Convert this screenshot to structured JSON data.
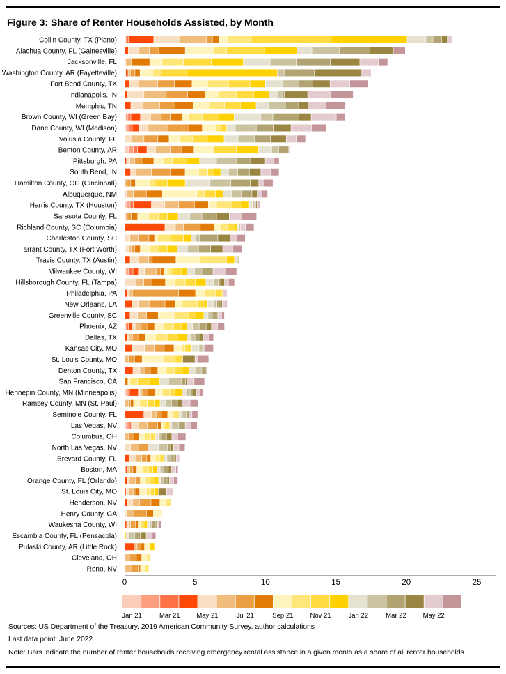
{
  "title": "Figure 3: Share of Renter Households Assisted, by Month",
  "notes": {
    "sources": "Sources: US Department of the Treasury, 2019 American Community Survey, author calculations",
    "last_data": "Last data point: June 2022",
    "note": "Note: Bars indicate the number of renter households receiving emergency rental assistance in a given month as a share of all renter households."
  },
  "chart_data": {
    "type": "bar",
    "orientation": "horizontal",
    "stacked": true,
    "xlim": [
      0,
      25
    ],
    "xticks": [
      0,
      5,
      10,
      15,
      20,
      25
    ],
    "grid": false,
    "legend_position": "bottom",
    "months": [
      "Jan 21",
      "Feb 21",
      "Mar 21",
      "Apr 21",
      "May 21",
      "Jun 21",
      "Jul 21",
      "Aug 21",
      "Sep 21",
      "Oct 21",
      "Nov 21",
      "Dec 21",
      "Jan 22",
      "Feb 22",
      "Mar 22",
      "Apr 22",
      "May 22",
      "Jun 22"
    ],
    "legend_labels": [
      "Jan 21",
      "",
      "Mar 21",
      "",
      "May 21",
      "",
      "Jul 21",
      "",
      "Sep 21",
      "",
      "Nov 21",
      "",
      "Jan 22",
      "",
      "Mar 22",
      "",
      "May 22",
      ""
    ],
    "colors": [
      "#fdcdbb",
      "#fc9f7f",
      "#fd7346",
      "#fe4a06",
      "#f9dfc1",
      "#f1bd7c",
      "#eb9f42",
      "#e27b06",
      "#fff4bb",
      "#ffe679",
      "#ffdb3f",
      "#ffd100",
      "#e6e2d2",
      "#cbc2a0",
      "#b1a472",
      "#9a8642",
      "#e4cbcf",
      "#c49599"
    ],
    "categories": [
      "Collin County, TX (Plano)",
      "Alachua County, FL (Gainesville)",
      "Jacksonville, FL",
      "Washington County, AR (Fayetteville)",
      "Fort Bend County, TX",
      "Indianapolis, IN",
      "Memphis, TN",
      "Brown County, WI (Green Bay)",
      "Dane County, WI (Madison)",
      "Volusia County, FL",
      "Benton County, AR",
      "Pittsburgh, PA",
      "South Bend, IN",
      "Hamilton County, OH (Cincinnati)",
      "Albuquerque, NM",
      "Harris County, TX (Houston)",
      "Sarasota County, FL",
      "Richland County, SC (Columbia)",
      "Charleston County, SC",
      "Tarrant County, TX (Fort Worth)",
      "Travis County, TX (Austin)",
      "Milwaukee County, WI",
      "Hillsborough County, FL (Tampa)",
      "Philadelphia, PA",
      "New Orleans, LA",
      "Greenville County, SC",
      "Phoenix, AZ",
      "Dallas, TX",
      "Kansas City, MO",
      "St. Louis County, MO",
      "Denton County, TX",
      "San Francisco, CA",
      "Hennepin County, MN (Minneapolis)",
      "Ramsey County, MN (St. Paul)",
      "Seminole County, FL",
      "Las Vegas, NV",
      "Columbus, OH",
      "North Las Vegas, NV",
      "Brevard County, FL",
      "Boston, MA",
      "Orange County, FL (Orlando)",
      "St. Louis City, MO",
      "Henderson, NV",
      "Henry County, GA",
      "Waukesha County, WI",
      "Escambia County, FL (Pensacola)",
      "Pulaski County, AR (Little Rock)",
      "Cleveland, OH",
      "Reno, NV"
    ],
    "values": [
      [
        0.1,
        0.08,
        0.1,
        1.8,
        1.86,
        1.88,
        0.43,
        0.49,
        0.56,
        1.71,
        5.67,
        5.39,
        1.33,
        0.56,
        0.56,
        0.4,
        0.36,
        0
      ],
      [
        0,
        0,
        0,
        0.28,
        0.7,
        0.8,
        0.66,
        1.88,
        2.04,
        0.9,
        2.69,
        2.31,
        1.05,
        1.94,
        2.19,
        1.68,
        0,
        0.82
      ],
      [
        0.1,
        0,
        0,
        0,
        0,
        0.38,
        0,
        1.32,
        0.87,
        1.53,
        1.98,
        2.26,
        1.98,
        1.78,
        2.42,
        2.09,
        1.32,
        0.66
      ],
      [
        0.1,
        0,
        0,
        0.16,
        0,
        0.16,
        0.33,
        0.36,
        0.9,
        0.6,
        1.85,
        6.39,
        0,
        0.53,
        2.09,
        3.31,
        0.74,
        0
      ],
      [
        0,
        0,
        0,
        0.33,
        0.7,
        1.33,
        1.19,
        1.25,
        1.1,
        1.48,
        1.53,
        1.1,
        1.19,
        1.19,
        0.99,
        1.22,
        1.4,
        1.32
      ],
      [
        0,
        0,
        0,
        0.2,
        1.19,
        1.58,
        1.52,
        1.22,
        0.99,
        1.22,
        1.25,
        1.1,
        0.63,
        0.33,
        0.13,
        1.65,
        1.63,
        1.6
      ],
      [
        0,
        0,
        0,
        0.46,
        0.86,
        1.19,
        1.09,
        1.3,
        1.14,
        1.07,
        1.12,
        1.12,
        0.89,
        1.19,
        0.94,
        0.72,
        1.22,
        1.37
      ],
      [
        0.1,
        0.16,
        0.2,
        0.68,
        0.72,
        0.76,
        0.64,
        0.82,
        0.45,
        0.99,
        1.2,
        1.07,
        1.88,
        0.87,
        1.85,
        0.87,
        1.78,
        0.61
      ],
      [
        0.16,
        0.2,
        0.2,
        0.5,
        0.63,
        1.4,
        1.48,
        0.96,
        0.95,
        0.38,
        0.41,
        0,
        0.61,
        1.48,
        1.2,
        1.27,
        1.45,
        1.05
      ],
      [
        0,
        0,
        0,
        0,
        0.53,
        0.86,
        0.99,
        0.79,
        0.74,
        0.94,
        1.04,
        1.19,
        0.99,
        1.15,
        1.15,
        1.12,
        0.71,
        0.66
      ],
      [
        0.31,
        0.33,
        0.3,
        0.66,
        0.61,
        1.04,
        0.82,
        0.87,
        1.43,
        0,
        1.58,
        1.57,
        0.94,
        0.49,
        0.69,
        0.05,
        0.08,
        0
      ],
      [
        0,
        0,
        0,
        0.15,
        0.25,
        0.33,
        0.59,
        0.77,
        0.69,
        0.63,
        1.04,
        0.89,
        1.2,
        1.43,
        0.99,
        1.04,
        0.63,
        0.36
      ],
      [
        0,
        0,
        0,
        0.44,
        0.38,
        1.1,
        1.32,
        1.07,
        0.96,
        0.66,
        0.44,
        0.46,
        0.56,
        0.66,
        0.82,
        0.82,
        0.68,
        0.61
      ],
      [
        0,
        0,
        0,
        0,
        0,
        0.2,
        0.25,
        0.33,
        0.99,
        0.41,
        0.87,
        1.27,
        1.76,
        1.48,
        1.37,
        0.61,
        0.38,
        0.63
      ],
      [
        0.15,
        0,
        0,
        0,
        0,
        0.49,
        0.92,
        1.14,
        2.44,
        0.53,
        0.79,
        0.53,
        0.63,
        0.69,
        0.74,
        0.38,
        0.33,
        0.41
      ],
      [
        0.2,
        0.21,
        0.23,
        1.28,
        0.94,
        0.99,
        1.12,
        0.99,
        0.58,
        1.12,
        0.69,
        0.51,
        0.23,
        0.13,
        0.12,
        0.08,
        0.08,
        0.1
      ],
      [
        0.2,
        0,
        0,
        0,
        0,
        0,
        0.28,
        0.46,
        0.77,
        0.71,
        0.63,
        0.77,
        0.82,
        0.86,
        1.04,
        0.9,
        0.91,
        1.04
      ],
      [
        0,
        0,
        0,
        2.88,
        0.74,
        0.58,
        1.19,
        0.99,
        0.41,
        0.54,
        0.53,
        0.16,
        0.08,
        0.07,
        0.06,
        0,
        0.36,
        0.61
      ],
      [
        0,
        0,
        0,
        0,
        0.4,
        0.58,
        0.76,
        0.4,
        0.21,
        0.96,
        0.89,
        0.54,
        0.33,
        0.28,
        1.28,
        0.86,
        0.51,
        0.58
      ],
      [
        0.08,
        0,
        0,
        0,
        0.2,
        0.2,
        0.25,
        0.4,
        0.71,
        0.61,
        0.59,
        0.71,
        0.72,
        0.79,
        0.86,
        0.86,
        0.71,
        0.69
      ],
      [
        0,
        0,
        0,
        0.41,
        0.56,
        0.76,
        0.25,
        1.68,
        1.73,
        1.81,
        0.05,
        0.56,
        0.21,
        0.05,
        0.08,
        0,
        0,
        0
      ],
      [
        0.12,
        0.16,
        0.33,
        0.38,
        0.44,
        0.82,
        0.33,
        0.25,
        0.3,
        0.31,
        0.63,
        0.36,
        0.54,
        0.61,
        0.71,
        0,
        0.91,
        0.77
      ],
      [
        0,
        0,
        0,
        0,
        0.82,
        0.56,
        0.59,
        0.94,
        0.63,
        0.77,
        0.71,
        0.77,
        0.54,
        0.33,
        0.2,
        0.25,
        0.28,
        0.43
      ],
      [
        0,
        0,
        0,
        0.2,
        0.16,
        0.21,
        3.28,
        1.2,
        0.66,
        0.74,
        0.44,
        0.08,
        0,
        0,
        0.05,
        0,
        0.2,
        0.05
      ],
      [
        0,
        0,
        0,
        0.53,
        0.46,
        0.77,
        1.12,
        0.74,
        0.49,
        1.07,
        0.53,
        0.2,
        0.41,
        0.25,
        0.3,
        0.08,
        0.25,
        0.08
      ],
      [
        0,
        0,
        0,
        0.4,
        0.54,
        0.64,
        0,
        0.82,
        1.12,
        1.05,
        0.51,
        0.56,
        0.3,
        0.3,
        0.36,
        0.05,
        0.25,
        0.2
      ],
      [
        0.12,
        0,
        0.16,
        0.25,
        0.3,
        0.36,
        0.46,
        0.49,
        0.61,
        0.74,
        0.58,
        0.38,
        0.4,
        0.46,
        0.49,
        0.38,
        0.44,
        0.49
      ],
      [
        0,
        0,
        0,
        0.2,
        0.16,
        0.21,
        0.44,
        0.49,
        0.71,
        0.82,
        0.74,
        0.66,
        0.25,
        0.33,
        0.36,
        0.25,
        0.38,
        0.33
      ],
      [
        0,
        0,
        0,
        0.56,
        0.87,
        0.69,
        0.71,
        0.69,
        0.54,
        0.25,
        0.46,
        0,
        0.53,
        0.25,
        0.08,
        0,
        0.08,
        0.61
      ],
      [
        0,
        0,
        0,
        0,
        0,
        0.28,
        0.44,
        0.54,
        1.48,
        0.87,
        0.53,
        0,
        0,
        0,
        0,
        0.87,
        0.16,
        0.82
      ],
      [
        0,
        0,
        0,
        0.61,
        0.49,
        0.36,
        0.38,
        0.53,
        0.54,
        0.66,
        0.54,
        0.49,
        0.49,
        0.4,
        0.26,
        0.08,
        0.08,
        0
      ],
      [
        0,
        0,
        0,
        0,
        0,
        0,
        0,
        0.25,
        0.16,
        0.53,
        0.86,
        0.71,
        0.63,
        0.89,
        0.3,
        0.16,
        0.46,
        0.74
      ],
      [
        0.2,
        0.16,
        0,
        0.63,
        0.2,
        0.13,
        0.36,
        0.53,
        0.49,
        0.54,
        0.33,
        0.54,
        0.33,
        0.23,
        0.21,
        0.25,
        0.25,
        0.21
      ],
      [
        0,
        0,
        0,
        0,
        0,
        0.28,
        0.16,
        0.21,
        0.44,
        0.54,
        0.49,
        0.41,
        0.4,
        0.41,
        0.43,
        0.31,
        0.58,
        0.59
      ],
      [
        0,
        0,
        0,
        1.38,
        0.54,
        0.33,
        0.38,
        0.44,
        0.36,
        0.3,
        0.13,
        0,
        0.25,
        0.28,
        0.2,
        0,
        0.21,
        0.41
      ],
      [
        0.2,
        0.16,
        0.13,
        0.08,
        0.4,
        0.66,
        0.74,
        0.28,
        0.16,
        0.16,
        0.16,
        0.08,
        0.16,
        0.49,
        0.46,
        0,
        0.41,
        0.44
      ],
      [
        0,
        0,
        0,
        0,
        0,
        0.31,
        0.38,
        0.38,
        0.41,
        0.4,
        0.21,
        0.12,
        0.21,
        0.21,
        0.36,
        0.38,
        0.41,
        0.58
      ],
      [
        0,
        0,
        0,
        0,
        0.44,
        0.58,
        0.66,
        0,
        0,
        0,
        0,
        0,
        0.74,
        0.63,
        0.23,
        0.21,
        0.38,
        0.43
      ],
      [
        0,
        0,
        0,
        0.36,
        0.46,
        0.41,
        0.36,
        0.28,
        0.33,
        0.33,
        0.26,
        0,
        0.23,
        0.3,
        0.21,
        0.15,
        0.21,
        0.08
      ],
      [
        0.08,
        0,
        0,
        0.16,
        0,
        0.15,
        0.21,
        0.28,
        0.38,
        0.46,
        0.31,
        0.3,
        0.21,
        0.25,
        0.33,
        0.23,
        0.3,
        0.16
      ],
      [
        0,
        0,
        0,
        0.2,
        0.16,
        0.41,
        0.36,
        0,
        0.38,
        0.33,
        0.33,
        0.25,
        0.16,
        0.2,
        0.25,
        0.16,
        0.3,
        0.3
      ],
      [
        0,
        0,
        0,
        0.12,
        0.2,
        0.3,
        0.21,
        0.25,
        0.48,
        0.3,
        0.25,
        0.3,
        0,
        0,
        0,
        0.58,
        0.46,
        0
      ],
      [
        0,
        0,
        0,
        0.2,
        0.38,
        0.49,
        0.82,
        0.63,
        0.38,
        0.41,
        0,
        0,
        0,
        0,
        0,
        0,
        0,
        0
      ],
      [
        0,
        0,
        0,
        0,
        0.15,
        0.53,
        0.89,
        0.49,
        0.63,
        0,
        0,
        0,
        0,
        0,
        0,
        0,
        0,
        0
      ],
      [
        0,
        0,
        0,
        0.16,
        0.12,
        0.16,
        0.33,
        0.21,
        0.2,
        0.16,
        0.13,
        0.15,
        0.16,
        0.13,
        0.33,
        0.12,
        0.05,
        0.2
      ],
      [
        0,
        0,
        0,
        0,
        0,
        0,
        0,
        0,
        0,
        0,
        0,
        0.12,
        0.2,
        0.41,
        0.41,
        0.41,
        0.43,
        0.25
      ],
      [
        0,
        0,
        0,
        0.74,
        0,
        0.16,
        0.28,
        0.25,
        0.36,
        0,
        0,
        0.35,
        0,
        0,
        0,
        0,
        0,
        0
      ],
      [
        0,
        0,
        0,
        0,
        0,
        0.36,
        0.49,
        0.38,
        0.36,
        0.25,
        0,
        0,
        0,
        0,
        0,
        0,
        0,
        0
      ],
      [
        0,
        0,
        0,
        0,
        0,
        0.53,
        0.46,
        0.15,
        0.35,
        0.25,
        0,
        0,
        0,
        0,
        0,
        0,
        0,
        0
      ]
    ]
  }
}
